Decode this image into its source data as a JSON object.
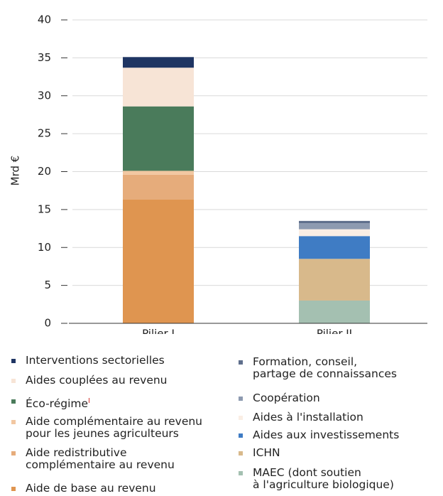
{
  "chart_data": {
    "type": "stacked_bar",
    "y_label": "Mrd €",
    "categories": [
      "Pilier I",
      "Pilier II"
    ],
    "ylim": [
      0,
      40
    ],
    "yticks": [
      0,
      5,
      10,
      15,
      20,
      25,
      30,
      35,
      40
    ],
    "grid": true,
    "series": [
      {
        "name": "Aide de base au revenu",
        "color": "#df9550",
        "values": [
          16.3,
          null
        ]
      },
      {
        "name": "Aide redistributive\ncomplémentaire au revenu",
        "color": "#e6ac7b",
        "values": [
          3.3,
          null
        ]
      },
      {
        "name": "Aide complémentaire au revenu\npour les jeunes agriculteurs",
        "color": "#f2c7a1",
        "values": [
          0.5,
          null
        ]
      },
      {
        "name": "Éco-régime",
        "note": "I",
        "color": "#4a7b5b",
        "values": [
          8.5,
          null
        ]
      },
      {
        "name": "Aides couplées au revenu",
        "color": "#f7e4d6",
        "values": [
          5.1,
          null
        ]
      },
      {
        "name": "Interventions sectorielles",
        "color": "#1f3563",
        "values": [
          1.4,
          null
        ]
      },
      {
        "name": "MAEC (dont soutien\nà l'agriculture biologique)",
        "color": "#a4c0b1",
        "values": [
          null,
          3.0
        ]
      },
      {
        "name": "ICHN",
        "color": "#d8b98b",
        "values": [
          null,
          5.5
        ]
      },
      {
        "name": "Aides aux investissements",
        "color": "#3f7cc4",
        "values": [
          null,
          3.0
        ]
      },
      {
        "name": "Aides à l'installation",
        "color": "#faeee4",
        "values": [
          null,
          0.9
        ]
      },
      {
        "name": "Coopération",
        "color": "#8d9ab0",
        "values": [
          null,
          0.8
        ]
      },
      {
        "name": "Formation, conseil,\npartage de connaissances",
        "color": "#5f6f8c",
        "values": [
          null,
          0.3
        ]
      }
    ]
  }
}
